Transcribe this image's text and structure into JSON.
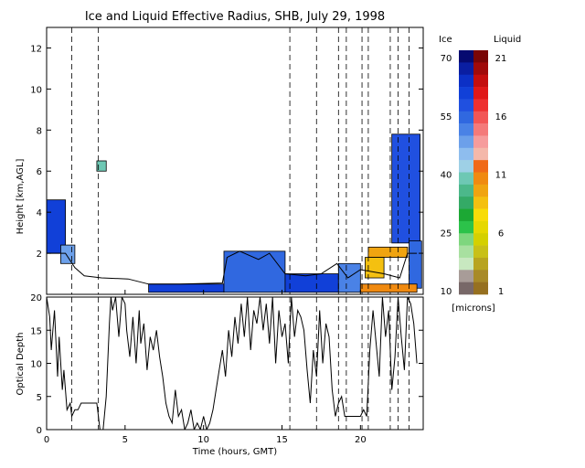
{
  "title": "Ice and Liquid Effective Radius, SHB, July 29, 1998",
  "colorbar": {
    "ice_label": "Ice",
    "liquid_label": "Liquid",
    "unit_label": "[microns]",
    "ice_ticks": [
      "70",
      "55",
      "40",
      "25",
      "10"
    ],
    "liquid_ticks": [
      "21",
      "16",
      "11",
      "6",
      "1"
    ],
    "ice_colors": [
      "#060a70",
      "#0a1ea2",
      "#0c30c6",
      "#1140d8",
      "#2050e0",
      "#3068e0",
      "#4a82e6",
      "#6ca0ea",
      "#8ebdee",
      "#9ed0e6",
      "#6ec8b4",
      "#4cb88a",
      "#34aa66",
      "#1ca834",
      "#2cc24a",
      "#7ed67e",
      "#a8e0a0",
      "#c8e8c0",
      "#a89c98",
      "#786868"
    ],
    "liquid_colors": [
      "#7a0606",
      "#a00a0a",
      "#c40e0e",
      "#e01818",
      "#ee3030",
      "#f25656",
      "#f47a7a",
      "#f69c9c",
      "#f4b8aa",
      "#f06a18",
      "#f08a10",
      "#f0a410",
      "#f4c010",
      "#f8dc08",
      "#e6d800",
      "#d4d000",
      "#c8c018",
      "#b8a420",
      "#a88a28",
      "#967020"
    ]
  },
  "chart_data": [
    {
      "type": "heatmap",
      "name": "effective-radius",
      "title": "Ice and Liquid Effective Radius, SHB, July 29, 1998",
      "xlabel": "Time (hours, GMT)",
      "ylabel": "Height [km,AGL]",
      "xlim": [
        0,
        24
      ],
      "ylim": [
        0,
        13
      ],
      "x_ticks": [
        "0",
        "5",
        "10",
        "15",
        "20"
      ],
      "y_ticks": [
        "2",
        "4",
        "6",
        "8",
        "10",
        "12"
      ],
      "dashed_lines_hours": [
        1.6,
        3.3,
        15.5,
        17.2,
        18.6,
        19.1,
        20.1,
        20.5,
        21.9,
        22.4,
        23.1
      ],
      "cloud_boundary": [
        [
          0,
          2.0
        ],
        [
          1.2,
          2.0
        ],
        [
          1.8,
          1.3
        ],
        [
          2.4,
          0.9
        ],
        [
          3.5,
          0.8
        ],
        [
          5.2,
          0.75
        ],
        [
          6.5,
          0.5
        ],
        [
          8.5,
          0.5
        ],
        [
          11.2,
          0.55
        ],
        [
          11.5,
          1.8
        ],
        [
          12.3,
          2.1
        ],
        [
          13.5,
          1.7
        ],
        [
          14.2,
          2.0
        ],
        [
          15.2,
          1.0
        ],
        [
          16.5,
          0.9
        ],
        [
          17.5,
          1.0
        ],
        [
          18.5,
          1.5
        ],
        [
          19.2,
          0.8
        ],
        [
          20.0,
          1.2
        ],
        [
          21.5,
          1.0
        ],
        [
          22.5,
          0.8
        ],
        [
          23.0,
          2.0
        ],
        [
          23.6,
          2.0
        ]
      ],
      "regions": [
        {
          "kind": "ice",
          "x": [
            0,
            1.2
          ],
          "y": [
            2.0,
            4.6
          ],
          "radius_um": 62
        },
        {
          "kind": "ice",
          "x": [
            0.9,
            1.8
          ],
          "y": [
            1.5,
            2.4
          ],
          "radius_um": 48
        },
        {
          "kind": "ice",
          "x": [
            6.5,
            11.3
          ],
          "y": [
            0.1,
            0.5
          ],
          "radius_um": 60
        },
        {
          "kind": "ice",
          "x": [
            11.3,
            15.2
          ],
          "y": [
            0.1,
            2.1
          ],
          "radius_um": 55
        },
        {
          "kind": "ice",
          "x": [
            15.2,
            18.6
          ],
          "y": [
            0.1,
            1.0
          ],
          "radius_um": 60
        },
        {
          "kind": "ice",
          "x": [
            18.6,
            20.0
          ],
          "y": [
            0.1,
            1.5
          ],
          "radius_um": 50
        },
        {
          "kind": "ice",
          "x": [
            22.0,
            23.8
          ],
          "y": [
            2.5,
            7.8
          ],
          "radius_um": 58
        },
        {
          "kind": "ice",
          "x": [
            23.1,
            23.9
          ],
          "y": [
            0.3,
            2.6
          ],
          "radius_um": 55
        },
        {
          "kind": "ice",
          "x": [
            3.2,
            3.8
          ],
          "y": [
            6.0,
            6.5
          ],
          "radius_um": 40
        },
        {
          "kind": "liquid",
          "x": [
            20.0,
            23.6
          ],
          "y": [
            0.1,
            0.5
          ],
          "radius_um": 10
        },
        {
          "kind": "liquid",
          "x": [
            20.5,
            23.0
          ],
          "y": [
            1.8,
            2.3
          ],
          "radius_um": 9
        },
        {
          "kind": "liquid",
          "x": [
            20.3,
            21.5
          ],
          "y": [
            0.8,
            1.8
          ],
          "radius_um": 8
        }
      ]
    },
    {
      "type": "line",
      "name": "optical-depth",
      "xlabel": "Time (hours, GMT)",
      "ylabel": "Optical Depth",
      "xlim": [
        0,
        24
      ],
      "ylim": [
        0,
        20
      ],
      "x_ticks": [
        "0",
        "5",
        "10",
        "15",
        "20"
      ],
      "y_ticks": [
        "0",
        "5",
        "10",
        "15",
        "20"
      ],
      "dashed_lines_hours": [
        1.6,
        3.3,
        15.5,
        17.2,
        18.6,
        19.1,
        20.1,
        20.5,
        21.9,
        22.4,
        23.1
      ],
      "series": [
        {
          "x": [
            0,
            0.2,
            0.3,
            0.5,
            0.7,
            0.8,
            1.0,
            1.1,
            1.3,
            1.5,
            1.6,
            1.8,
            2.0,
            2.2,
            2.4,
            2.6,
            2.8,
            3.0,
            3.2,
            3.4,
            3.6,
            3.8,
            4.0,
            4.1,
            4.2,
            4.4,
            4.6,
            4.8,
            5.0,
            5.1,
            5.3,
            5.5,
            5.7,
            5.9,
            6.0,
            6.2,
            6.4,
            6.6,
            6.8,
            7.0,
            7.2,
            7.4,
            7.6,
            7.8,
            8.0,
            8.2,
            8.4,
            8.6,
            8.8,
            9.0,
            9.2,
            9.4,
            9.6,
            9.8,
            10.0,
            10.2,
            10.4,
            10.6,
            10.8,
            11.0,
            11.2,
            11.4,
            11.6,
            11.8,
            12.0,
            12.2,
            12.4,
            12.6,
            12.8,
            13.0,
            13.2,
            13.4,
            13.6,
            13.8,
            14.0,
            14.2,
            14.4,
            14.6,
            14.8,
            15.0,
            15.2,
            15.4,
            15.6,
            15.8,
            16.0,
            16.2,
            16.4,
            16.6,
            16.8,
            17.0,
            17.2,
            17.4,
            17.6,
            17.8,
            18.0,
            18.2,
            18.4,
            18.6,
            18.8,
            19.0,
            19.2,
            19.4,
            19.6,
            19.8,
            20.0,
            20.2,
            20.4,
            20.6,
            20.8,
            21.0,
            21.2,
            21.4,
            21.6,
            21.8,
            22.0,
            22.2,
            22.4,
            22.6,
            22.8,
            23.0,
            23.2,
            23.4,
            23.6
          ],
          "y": [
            20,
            17,
            12,
            18,
            8,
            14,
            6,
            9,
            3,
            4,
            2,
            3,
            3,
            4,
            4,
            4,
            4,
            4,
            4,
            0,
            0,
            5,
            16,
            20,
            18,
            20,
            14,
            20,
            19,
            15,
            11,
            17,
            10,
            18,
            13,
            16,
            9,
            14,
            12,
            15,
            11,
            8,
            4,
            2,
            1,
            6,
            2,
            3,
            0,
            1,
            3,
            0,
            1,
            0,
            2,
            0,
            1,
            3,
            6,
            9,
            12,
            8,
            15,
            11,
            17,
            13,
            19,
            14,
            20,
            12,
            18,
            16,
            20,
            15,
            19,
            13,
            20,
            10,
            18,
            14,
            16,
            10,
            20,
            14,
            18,
            17,
            15,
            9,
            4,
            12,
            8,
            18,
            10,
            16,
            14,
            6,
            2,
            4,
            5,
            2,
            2,
            2,
            2,
            2,
            2,
            3,
            2,
            12,
            18,
            13,
            8,
            20,
            14,
            18,
            6,
            11,
            20,
            14,
            9,
            20,
            19,
            16,
            10
          ]
        }
      ]
    }
  ]
}
